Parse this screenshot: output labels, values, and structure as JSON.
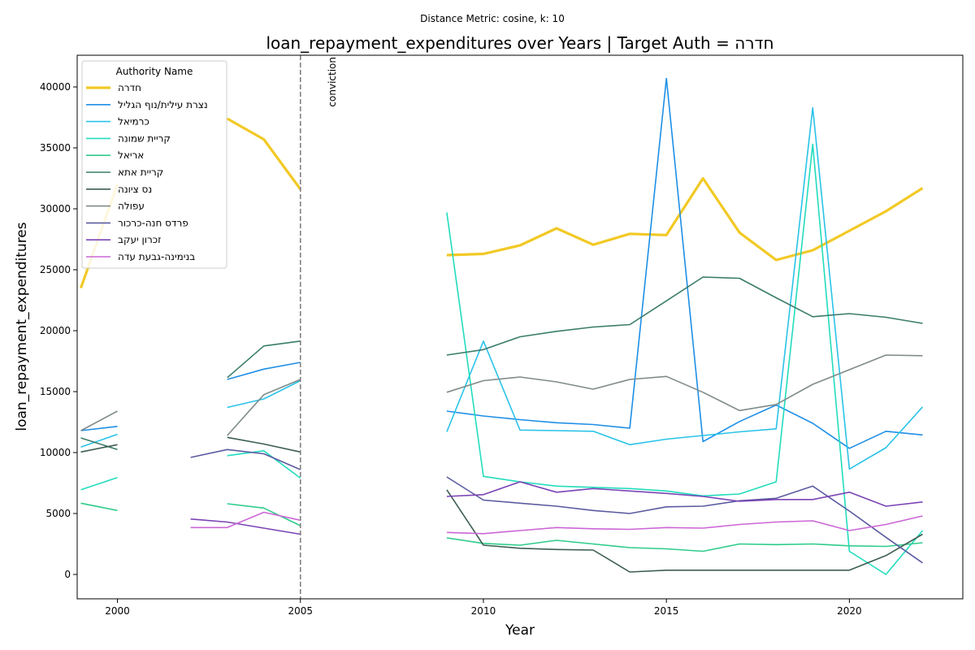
{
  "chart_data": {
    "type": "line",
    "suptitle": "Distance Metric: cosine, k: 10",
    "title": "loan_repayment_expenditures over Years | Target Auth = חדרה",
    "xlabel": "Year",
    "ylabel": "loan_repayment_expenditures",
    "xlim": [
      1998.9,
      2023.1
    ],
    "ylim": [
      -2000,
      42600
    ],
    "xticks": [
      2000,
      2005,
      2010,
      2015,
      2020
    ],
    "yticks": [
      0,
      5000,
      10000,
      15000,
      20000,
      25000,
      30000,
      35000,
      40000
    ],
    "legend_title": "Authority Name",
    "legend_location": "upper-left",
    "annotation": {
      "x": 2005,
      "label": "conviction"
    },
    "x": [
      1999,
      2000,
      2001,
      2002,
      2003,
      2004,
      2005,
      2006,
      2007,
      2008,
      2009,
      2010,
      2011,
      2012,
      2013,
      2014,
      2015,
      2016,
      2017,
      2018,
      2019,
      2020,
      2021,
      2022
    ],
    "series": [
      {
        "name": "חדרה",
        "color": "#f2c925",
        "target": true,
        "values": [
          23500,
          32000,
          null,
          null,
          37400,
          35700,
          31600,
          null,
          null,
          null,
          26200,
          26300,
          27000,
          28400,
          27050,
          27950,
          27850,
          32500,
          28050,
          25800,
          26600,
          28200,
          29800,
          31700
        ]
      },
      {
        "name": "נצרת עילית/נוף הגליל",
        "color": "#1e8fe6",
        "values": [
          11800,
          12150,
          null,
          null,
          16000,
          16850,
          17400,
          null,
          null,
          null,
          13400,
          13000,
          12700,
          12450,
          12300,
          12000,
          40700,
          10900,
          12550,
          13900,
          12400,
          10350,
          11750,
          11450
        ]
      },
      {
        "name": "כרמיאל",
        "color": "#2ac3e8",
        "values": [
          10450,
          11500,
          null,
          null,
          13700,
          14400,
          15900,
          null,
          null,
          null,
          11700,
          19150,
          11850,
          11800,
          11750,
          10650,
          11100,
          11400,
          11700,
          11950,
          38300,
          8650,
          10400,
          13750
        ]
      },
      {
        "name": "קריית שמונה",
        "color": "#22dcbd",
        "values": [
          6950,
          7950,
          null,
          null,
          9750,
          10150,
          7900,
          null,
          null,
          null,
          29700,
          8050,
          7600,
          7250,
          7150,
          7050,
          6850,
          6450,
          6600,
          7600,
          35300,
          1900,
          0,
          3600
        ]
      },
      {
        "name": "אריאל",
        "color": "#2ecc8a",
        "values": [
          5850,
          5250,
          null,
          null,
          5800,
          5450,
          4000,
          null,
          null,
          null,
          3000,
          2550,
          2400,
          2800,
          2500,
          2200,
          2100,
          1900,
          2500,
          2450,
          2500,
          2350,
          2300,
          2600
        ]
      },
      {
        "name": "קריית אתא",
        "color": "#3a7d6a",
        "values": [
          11200,
          10250,
          null,
          null,
          16150,
          18750,
          19150,
          null,
          null,
          null,
          18000,
          18450,
          19500,
          19950,
          20300,
          20500,
          22450,
          24400,
          24300,
          22700,
          21150,
          21400,
          21100,
          20600
        ]
      },
      {
        "name": "נס ציונה",
        "color": "#3d5e52",
        "values": [
          10050,
          10650,
          null,
          null,
          11250,
          10700,
          10050,
          null,
          null,
          null,
          6950,
          2400,
          2150,
          2050,
          2000,
          200,
          350,
          350,
          350,
          350,
          350,
          350,
          1550,
          3300
        ]
      },
      {
        "name": "עפולה",
        "color": "#7f8c8a",
        "values": [
          11800,
          13400,
          null,
          null,
          11400,
          14750,
          16000,
          null,
          null,
          null,
          14950,
          15900,
          16200,
          15800,
          15200,
          16000,
          16250,
          14950,
          13450,
          13950,
          15600,
          16800,
          18000,
          17950
        ]
      },
      {
        "name": "פרדס חנה-כרכור",
        "color": "#5b5aa0",
        "values": [
          null,
          null,
          null,
          9600,
          10250,
          9900,
          8600,
          null,
          null,
          null,
          8000,
          6100,
          5850,
          5600,
          5250,
          5000,
          5550,
          5600,
          6050,
          6250,
          7250,
          5200,
          3050,
          950
        ]
      },
      {
        "name": "זכרון יעקב",
        "color": "#7b44b6",
        "values": [
          null,
          null,
          null,
          4550,
          4300,
          3800,
          3300,
          null,
          null,
          null,
          6400,
          6550,
          7600,
          6750,
          7050,
          6850,
          6650,
          6400,
          6000,
          6150,
          6150,
          6750,
          5600,
          5950
        ]
      },
      {
        "name": "בנימינה-גבעת עדה",
        "color": "#cc66d6",
        "values": [
          null,
          null,
          null,
          3850,
          3850,
          5100,
          4450,
          null,
          null,
          null,
          3450,
          3350,
          3600,
          3850,
          3750,
          3700,
          3850,
          3800,
          4100,
          4300,
          4400,
          3600,
          4100,
          4800
        ]
      }
    ]
  }
}
